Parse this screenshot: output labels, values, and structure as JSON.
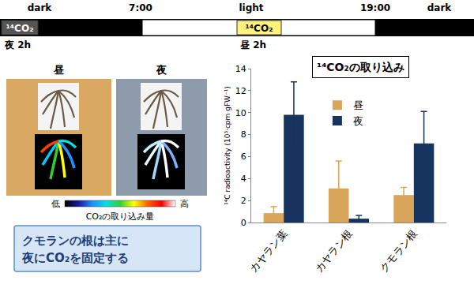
{
  "timeline": {
    "labels": [
      "dark",
      "7:00",
      "light",
      "19:00",
      "dark"
    ],
    "pulses": [
      {
        "text": "¹⁴CO₂",
        "duration": "夜 2h"
      },
      {
        "text": "¹⁴CO₂",
        "duration": "昼 2h"
      }
    ]
  },
  "images": {
    "labels": [
      "昼",
      "夜"
    ],
    "colorbar": {
      "low": "低",
      "high": "高",
      "label": "CO₂の取り込み量"
    }
  },
  "caption": [
    "クモランの根は主に",
    "夜にCO₂を固定する"
  ],
  "chart_data": {
    "type": "bar",
    "title": "¹⁴CO₂の取り込み",
    "y_label": "¹⁴C radioactivity (10³·cpm gFW⁻¹)",
    "categories": [
      "カヤラン葉",
      "カヤラン根",
      "クモラン根"
    ],
    "series": [
      {
        "name": "昼",
        "color": "#d9a55a",
        "values": [
          0.85,
          3.1,
          2.5
        ],
        "errors": [
          0.6,
          2.5,
          0.7
        ]
      },
      {
        "name": "夜",
        "color": "#17345e",
        "values": [
          9.8,
          0.35,
          7.2
        ],
        "errors": [
          3.0,
          0.3,
          2.9
        ]
      }
    ],
    "ylim": [
      0,
      14
    ],
    "yticks": [
      0,
      2,
      4,
      6,
      8,
      10,
      12,
      14
    ],
    "grid": false,
    "legend": "top"
  }
}
